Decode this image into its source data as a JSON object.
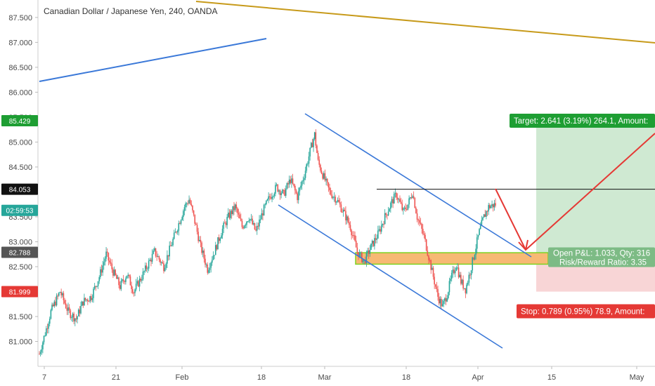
{
  "chart_data": {
    "type": "candlestick",
    "title": "Canadian Dollar / Japanese Yen, 240, OANDA",
    "x_ticks": [
      "7",
      "21",
      "Feb",
      "18",
      "Mar",
      "18",
      "Apr",
      "15",
      "May"
    ],
    "y_ticks": [
      "81.000",
      "81.500",
      "82.000",
      "82.500",
      "83.000",
      "83.500",
      "84.000",
      "84.500",
      "85.000",
      "85.500",
      "86.000",
      "86.500",
      "87.000",
      "87.500"
    ],
    "ylim": [
      80.5,
      87.85
    ],
    "price_tags": [
      {
        "label": "85.429",
        "value": 85.429,
        "color": "#1e9e33"
      },
      {
        "label": "84.053",
        "value": 84.053,
        "color": "#111111"
      },
      {
        "label": "02:59:53",
        "value": 83.63,
        "color": "#26a69a"
      },
      {
        "label": "82.788",
        "value": 82.788,
        "color": "#555555"
      },
      {
        "label": "81.999",
        "value": 81.999,
        "color": "#e53935"
      }
    ],
    "resistance_level": 84.053,
    "support_zone": [
      82.55,
      82.78
    ],
    "position": {
      "entry": 82.788,
      "target": 85.429,
      "stop": 81.999,
      "target_label": "Target: 2.641 (3.19%) 264.1, Amount:",
      "stop_label": "Stop: 0.789 (0.95%) 78.9, Amount:",
      "pnl_label": "Open P&L: 1.033, Qty: 316",
      "rr_label": "Risk/Reward Ratio: 3.35"
    },
    "price_path": [
      [
        0,
        80.75
      ],
      [
        6,
        81.25
      ],
      [
        10,
        81.6
      ],
      [
        18,
        82.0
      ],
      [
        25,
        81.6
      ],
      [
        32,
        81.45
      ],
      [
        38,
        81.8
      ],
      [
        45,
        81.9
      ],
      [
        52,
        82.3
      ],
      [
        58,
        82.75
      ],
      [
        64,
        82.4
      ],
      [
        70,
        82.1
      ],
      [
        76,
        82.35
      ],
      [
        82,
        82.0
      ],
      [
        90,
        82.35
      ],
      [
        100,
        82.8
      ],
      [
        108,
        82.5
      ],
      [
        114,
        82.9
      ],
      [
        120,
        83.3
      ],
      [
        126,
        83.7
      ],
      [
        130,
        83.85
      ],
      [
        134,
        83.5
      ],
      [
        140,
        82.9
      ],
      [
        146,
        82.45
      ],
      [
        152,
        82.8
      ],
      [
        158,
        83.2
      ],
      [
        164,
        83.5
      ],
      [
        170,
        83.7
      ],
      [
        176,
        83.3
      ],
      [
        182,
        83.5
      ],
      [
        188,
        83.2
      ],
      [
        194,
        83.6
      ],
      [
        200,
        83.9
      ],
      [
        206,
        84.1
      ],
      [
        212,
        83.95
      ],
      [
        218,
        84.25
      ],
      [
        224,
        83.9
      ],
      [
        230,
        84.35
      ],
      [
        236,
        84.9
      ],
      [
        239,
        85.15
      ],
      [
        242,
        84.6
      ],
      [
        246,
        84.35
      ],
      [
        252,
        84.0
      ],
      [
        258,
        83.85
      ],
      [
        264,
        83.6
      ],
      [
        270,
        83.3
      ],
      [
        276,
        82.8
      ],
      [
        282,
        82.6
      ],
      [
        288,
        82.9
      ],
      [
        294,
        83.15
      ],
      [
        300,
        83.5
      ],
      [
        306,
        83.8
      ],
      [
        310,
        83.95
      ],
      [
        316,
        83.6
      ],
      [
        320,
        83.75
      ],
      [
        324,
        84.0
      ],
      [
        328,
        83.5
      ],
      [
        334,
        83.1
      ],
      [
        340,
        82.5
      ],
      [
        346,
        81.9
      ],
      [
        350,
        81.7
      ],
      [
        354,
        81.95
      ],
      [
        358,
        82.3
      ],
      [
        362,
        82.55
      ],
      [
        366,
        82.2
      ],
      [
        370,
        82.05
      ],
      [
        374,
        82.4
      ],
      [
        378,
        82.8
      ],
      [
        382,
        83.2
      ],
      [
        386,
        83.5
      ],
      [
        390,
        83.7
      ],
      [
        396,
        83.75
      ]
    ]
  },
  "legend": {
    "target_text": "Target: 2.641 (3.19%) 264.1, Amount:",
    "stop_text": "Stop: 0.789 (0.95%) 78.9, Amount:",
    "pnl_text": "Open P&L: 1.033, Qty: 316",
    "rr_text": "Risk/Reward Ratio: 3.35"
  },
  "colors": {
    "up": "#26a69a",
    "down": "#ef5350",
    "trend_blue": "#3a78d8",
    "trend_gold": "#c79a1a",
    "target_fill": "#cfe9d2",
    "stop_fill": "#f8d5d6",
    "zone_fill": "#f7b974",
    "zone_stroke": "#7ed321",
    "arrow": "#e53935"
  }
}
